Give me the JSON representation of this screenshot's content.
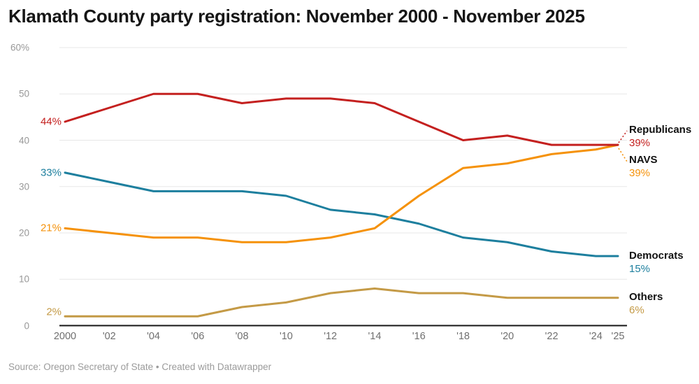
{
  "title": "Klamath County party registration: November 2000 - November 2025",
  "source": "Source: Oregon Secretary of State • Created with Datawrapper",
  "colors": {
    "republicans": "#c4201f",
    "navs": "#f5920b",
    "democrats": "#1d7f9e",
    "others": "#c49a46",
    "grid": "#e7e7e7",
    "axis": "#151515",
    "tick_text": "#989898",
    "title_text": "#161616"
  },
  "chart_data": {
    "type": "line",
    "x": [
      2000,
      2002,
      2004,
      2006,
      2008,
      2010,
      2012,
      2014,
      2016,
      2018,
      2020,
      2022,
      2024,
      2025
    ],
    "x_ticks": [
      {
        "v": 2000,
        "label": "2000"
      },
      {
        "v": 2002,
        "label": "'02"
      },
      {
        "v": 2004,
        "label": "'04"
      },
      {
        "v": 2006,
        "label": "'06"
      },
      {
        "v": 2008,
        "label": "'08"
      },
      {
        "v": 2010,
        "label": "'10"
      },
      {
        "v": 2012,
        "label": "'12"
      },
      {
        "v": 2014,
        "label": "'14"
      },
      {
        "v": 2016,
        "label": "'16"
      },
      {
        "v": 2018,
        "label": "'18"
      },
      {
        "v": 2020,
        "label": "'20"
      },
      {
        "v": 2022,
        "label": "'22"
      },
      {
        "v": 2024,
        "label": "'24"
      },
      {
        "v": 2025,
        "label": "'25"
      }
    ],
    "y_ticks": [
      {
        "v": 60,
        "label": "60%"
      },
      {
        "v": 50,
        "label": "50"
      },
      {
        "v": 40,
        "label": "40"
      },
      {
        "v": 30,
        "label": "30"
      },
      {
        "v": 20,
        "label": "20"
      },
      {
        "v": 10,
        "label": "10"
      },
      {
        "v": 0,
        "label": "0"
      }
    ],
    "ylim": [
      0,
      60
    ],
    "grid": "horizontal",
    "legend_position": "right of line ends",
    "series": [
      {
        "name": "Republicans",
        "color": "#c4201f",
        "start_label": "44%",
        "end_label": "39%",
        "values": [
          44,
          47,
          50,
          50,
          48,
          49,
          49,
          48,
          44,
          40,
          41,
          39,
          39,
          39
        ]
      },
      {
        "name": "NAVS",
        "color": "#f5920b",
        "start_label": "21%",
        "end_label": "39%",
        "values": [
          21,
          20,
          19,
          19,
          18,
          18,
          19,
          21,
          28,
          34,
          35,
          37,
          38,
          39
        ]
      },
      {
        "name": "Democrats",
        "color": "#1d7f9e",
        "start_label": "33%",
        "end_label": "15%",
        "values": [
          33,
          31,
          29,
          29,
          29,
          28,
          25,
          24,
          22,
          19,
          18,
          16,
          15,
          15
        ]
      },
      {
        "name": "Others",
        "color": "#c49a46",
        "start_label": "2%",
        "end_label": "6%",
        "values": [
          2,
          2,
          2,
          2,
          4,
          5,
          7,
          8,
          7,
          7,
          6,
          6,
          6,
          6
        ]
      }
    ]
  }
}
